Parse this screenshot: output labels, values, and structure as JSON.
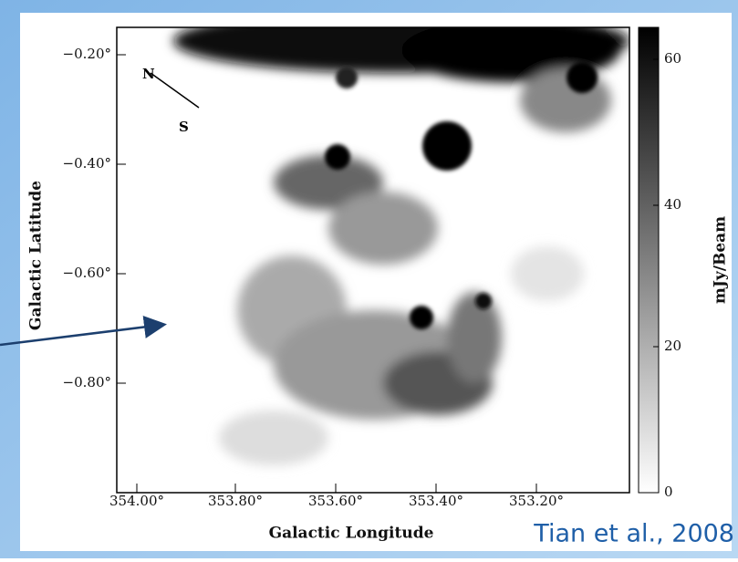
{
  "figure": {
    "y_axis": {
      "label": "Galactic Latitude",
      "ticks": [
        "−0.20°",
        "−0.40°",
        "−0.60°",
        "−0.80°"
      ]
    },
    "x_axis": {
      "label": "Galactic Longitude",
      "ticks": [
        "354.00°",
        "353.80°",
        "353.60°",
        "353.40°",
        "353.20°"
      ]
    },
    "colorbar": {
      "label": "mJy/Beam",
      "ticks": [
        "60",
        "40",
        "20",
        "0"
      ]
    },
    "compass": {
      "north": "N",
      "south": "S"
    }
  },
  "citation": "Tian et al., 2008"
}
